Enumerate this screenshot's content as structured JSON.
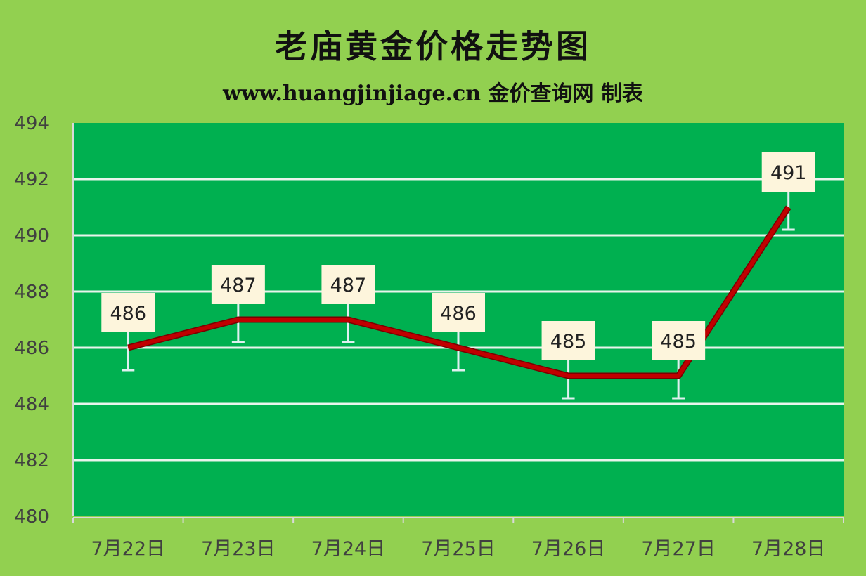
{
  "chart_data": {
    "type": "line",
    "title": "老庙黄金价格走势图",
    "subtitle": "www.huangjinjiage.cn 金价查询网 制表",
    "categories": [
      "7月22日",
      "7月23日",
      "7月24日",
      "7月25日",
      "7月26日",
      "7月27日",
      "7月28日"
    ],
    "series": [
      {
        "values": [
          486,
          487,
          487,
          486,
          485,
          485,
          491
        ]
      }
    ],
    "data_labels": [
      "486",
      "487",
      "487",
      "486",
      "485",
      "485",
      "491"
    ],
    "error_bar": 0.8,
    "ylim": [
      480,
      494
    ],
    "yticks": [
      480,
      482,
      484,
      486,
      488,
      490,
      492,
      494
    ],
    "ytick_labels": [
      "480",
      "482",
      "484",
      "486",
      "488",
      "490",
      "492",
      "494"
    ],
    "grid": true,
    "colors": {
      "background": "#92d050",
      "plot": "#00b050",
      "line": "#c00000",
      "grid": "#e8f4ec",
      "label_box": "#fdf5dc",
      "error_bar": "#e0f0f0"
    }
  }
}
